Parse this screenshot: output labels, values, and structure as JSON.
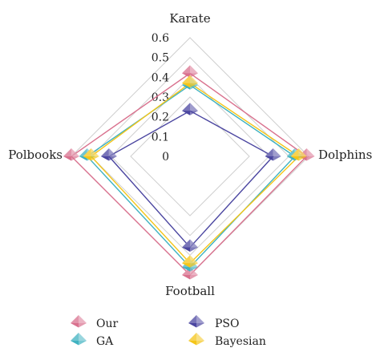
{
  "chart_data": {
    "type": "radar",
    "axes": [
      "Karate",
      "Dolphins",
      "Football",
      "Polbooks"
    ],
    "rmin": 0,
    "rmax": 0.6,
    "ticks": [
      "0",
      "0.1",
      "0.2",
      "0.3",
      "0.4",
      "0.5",
      "0.6"
    ],
    "tick_values": [
      0,
      0.1,
      0.2,
      0.3,
      0.4,
      0.5,
      0.6
    ],
    "grid": true,
    "legend_position": "bottom",
    "series": [
      {
        "name": "Our",
        "color": "#d9718e",
        "values": [
          0.42,
          0.59,
          0.6,
          0.6
        ]
      },
      {
        "name": "GA",
        "color": "#3fb2c1",
        "values": [
          0.36,
          0.53,
          0.56,
          0.52
        ]
      },
      {
        "name": "PSO",
        "color": "#4b46a0",
        "values": [
          0.23,
          0.42,
          0.46,
          0.41
        ]
      },
      {
        "name": "Bayesian",
        "color": "#f4c518",
        "values": [
          0.37,
          0.55,
          0.54,
          0.5
        ]
      }
    ]
  }
}
